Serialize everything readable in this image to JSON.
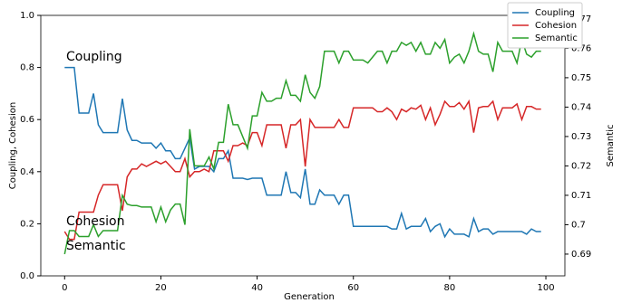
{
  "chart_data": {
    "type": "line",
    "x_label": "Generation",
    "y_label": "Coupling, Cohesion",
    "y2_label": "Semantic",
    "annotations": [
      "Coupling",
      "Cohesion",
      "Semantic"
    ],
    "legend": "upper right",
    "x": [
      0,
      1,
      2,
      3,
      4,
      5,
      6,
      7,
      8,
      9,
      10,
      11,
      12,
      13,
      14,
      15,
      16,
      17,
      18,
      19,
      20,
      21,
      22,
      23,
      24,
      25,
      26,
      27,
      28,
      29,
      30,
      31,
      32,
      33,
      34,
      35,
      36,
      37,
      38,
      39,
      40,
      41,
      42,
      43,
      44,
      45,
      46,
      47,
      48,
      49,
      50,
      51,
      52,
      53,
      54,
      55,
      56,
      57,
      58,
      59,
      60,
      61,
      62,
      63,
      64,
      65,
      66,
      67,
      68,
      69,
      70,
      71,
      72,
      73,
      74,
      75,
      76,
      77,
      78,
      79,
      80,
      81,
      82,
      83,
      84,
      85,
      86,
      87,
      88,
      89,
      90,
      91,
      92,
      93,
      94,
      95,
      96,
      97,
      98,
      99
    ],
    "xlim": [
      -4.95,
      103.95
    ],
    "xticks": [
      0,
      20,
      40,
      60,
      80,
      100
    ],
    "ylim": [
      0,
      1
    ],
    "yticks": [
      {
        "value": 0,
        "label": "0.0"
      },
      {
        "value": 0.2,
        "label": "0.2"
      },
      {
        "value": 0.4,
        "label": "0.4"
      },
      {
        "value": 0.6,
        "label": "0.6"
      },
      {
        "value": 0.8,
        "label": "0.8"
      },
      {
        "value": 1,
        "label": "1.0"
      }
    ],
    "y2lim": [
      0.6826,
      0.7712
    ],
    "y2ticks": [
      0.69,
      0.7,
      0.71,
      0.72,
      0.73,
      0.74,
      0.75,
      0.76,
      0.77
    ],
    "series": [
      {
        "name": "Coupling",
        "color": "#1f77b4",
        "values": [
          0.8,
          0.8,
          0.8,
          0.625,
          0.625,
          0.625,
          0.7,
          0.58,
          0.55,
          0.55,
          0.55,
          0.55,
          0.68,
          0.56,
          0.52,
          0.52,
          0.51,
          0.51,
          0.51,
          0.49,
          0.51,
          0.48,
          0.48,
          0.45,
          0.45,
          0.49,
          0.53,
          0.41,
          0.42,
          0.42,
          0.42,
          0.4,
          0.45,
          0.45,
          0.48,
          0.375,
          0.375,
          0.375,
          0.37,
          0.375,
          0.375,
          0.375,
          0.31,
          0.31,
          0.31,
          0.31,
          0.4,
          0.32,
          0.32,
          0.3,
          0.41,
          0.275,
          0.275,
          0.33,
          0.31,
          0.31,
          0.31,
          0.275,
          0.31,
          0.31,
          0.19,
          0.19,
          0.19,
          0.19,
          0.19,
          0.19,
          0.19,
          0.19,
          0.18,
          0.18,
          0.24,
          0.18,
          0.19,
          0.19,
          0.19,
          0.22,
          0.17,
          0.19,
          0.2,
          0.15,
          0.18,
          0.16,
          0.16,
          0.16,
          0.15,
          0.22,
          0.17,
          0.18,
          0.18,
          0.16,
          0.17,
          0.17,
          0.17,
          0.17,
          0.17,
          0.17,
          0.16,
          0.18,
          0.17,
          0.17
        ]
      },
      {
        "name": "Cohesion",
        "color": "#d62728",
        "values": [
          0.17,
          0.14,
          0.14,
          0.245,
          0.245,
          0.245,
          0.245,
          0.31,
          0.35,
          0.35,
          0.35,
          0.35,
          0.25,
          0.38,
          0.41,
          0.41,
          0.43,
          0.42,
          0.43,
          0.44,
          0.43,
          0.44,
          0.42,
          0.4,
          0.4,
          0.45,
          0.38,
          0.4,
          0.4,
          0.41,
          0.4,
          0.48,
          0.48,
          0.48,
          0.44,
          0.5,
          0.5,
          0.51,
          0.5,
          0.55,
          0.55,
          0.5,
          0.58,
          0.58,
          0.58,
          0.58,
          0.49,
          0.58,
          0.58,
          0.6,
          0.42,
          0.6,
          0.57,
          0.57,
          0.57,
          0.57,
          0.57,
          0.6,
          0.57,
          0.57,
          0.645,
          0.645,
          0.645,
          0.645,
          0.645,
          0.63,
          0.63,
          0.645,
          0.63,
          0.6,
          0.64,
          0.63,
          0.645,
          0.64,
          0.655,
          0.6,
          0.645,
          0.58,
          0.62,
          0.67,
          0.65,
          0.65,
          0.665,
          0.64,
          0.67,
          0.55,
          0.645,
          0.65,
          0.65,
          0.67,
          0.6,
          0.645,
          0.645,
          0.645,
          0.66,
          0.6,
          0.65,
          0.65,
          0.64,
          0.64
        ]
      },
      {
        "name": "Semantic",
        "color": "#2ca02c",
        "axis": "y2",
        "values": [
          0.69,
          0.698,
          0.698,
          0.696,
          0.696,
          0.696,
          0.7,
          0.696,
          0.698,
          0.698,
          0.698,
          0.698,
          0.71,
          0.707,
          0.7065,
          0.7065,
          0.706,
          0.706,
          0.706,
          0.701,
          0.706,
          0.701,
          0.705,
          0.707,
          0.707,
          0.7,
          0.7325,
          0.72,
          0.72,
          0.72,
          0.723,
          0.719,
          0.728,
          0.728,
          0.741,
          0.734,
          0.734,
          0.73,
          0.726,
          0.737,
          0.737,
          0.745,
          0.742,
          0.742,
          0.743,
          0.743,
          0.749,
          0.744,
          0.744,
          0.742,
          0.751,
          0.745,
          0.743,
          0.747,
          0.759,
          0.759,
          0.759,
          0.755,
          0.759,
          0.759,
          0.756,
          0.756,
          0.756,
          0.755,
          0.757,
          0.759,
          0.759,
          0.755,
          0.759,
          0.759,
          0.762,
          0.761,
          0.762,
          0.759,
          0.762,
          0.758,
          0.758,
          0.762,
          0.76,
          0.763,
          0.755,
          0.757,
          0.758,
          0.755,
          0.759,
          0.765,
          0.759,
          0.758,
          0.758,
          0.752,
          0.762,
          0.759,
          0.759,
          0.759,
          0.755,
          0.763,
          0.758,
          0.757,
          0.759,
          0.759
        ]
      }
    ]
  }
}
